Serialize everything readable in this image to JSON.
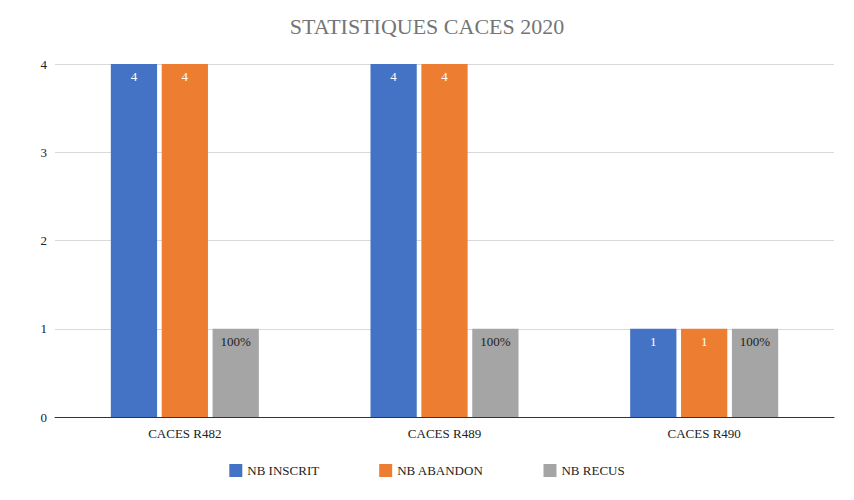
{
  "chart_data": {
    "type": "bar",
    "title": "STATISTIQUES CACES 2020",
    "categories": [
      "CACES R482",
      "CACES R489",
      "CACES R490"
    ],
    "series": [
      {
        "name": "NB INSCRIT",
        "color": "#4472c4",
        "values": [
          4,
          4,
          1
        ]
      },
      {
        "name": "NB ABANDON",
        "color": "#ed7d31",
        "values": [
          4,
          4,
          1
        ]
      },
      {
        "name": "NB RECUS",
        "color": "#a5a5a5",
        "values": [
          1,
          1,
          1
        ],
        "value_labels": [
          "100%",
          "100%",
          "100%"
        ]
      }
    ],
    "ylim": [
      0,
      4
    ],
    "yticks": [
      0,
      1,
      2,
      3,
      4
    ],
    "grid": true,
    "legend": "bottom",
    "data_labels": true
  }
}
